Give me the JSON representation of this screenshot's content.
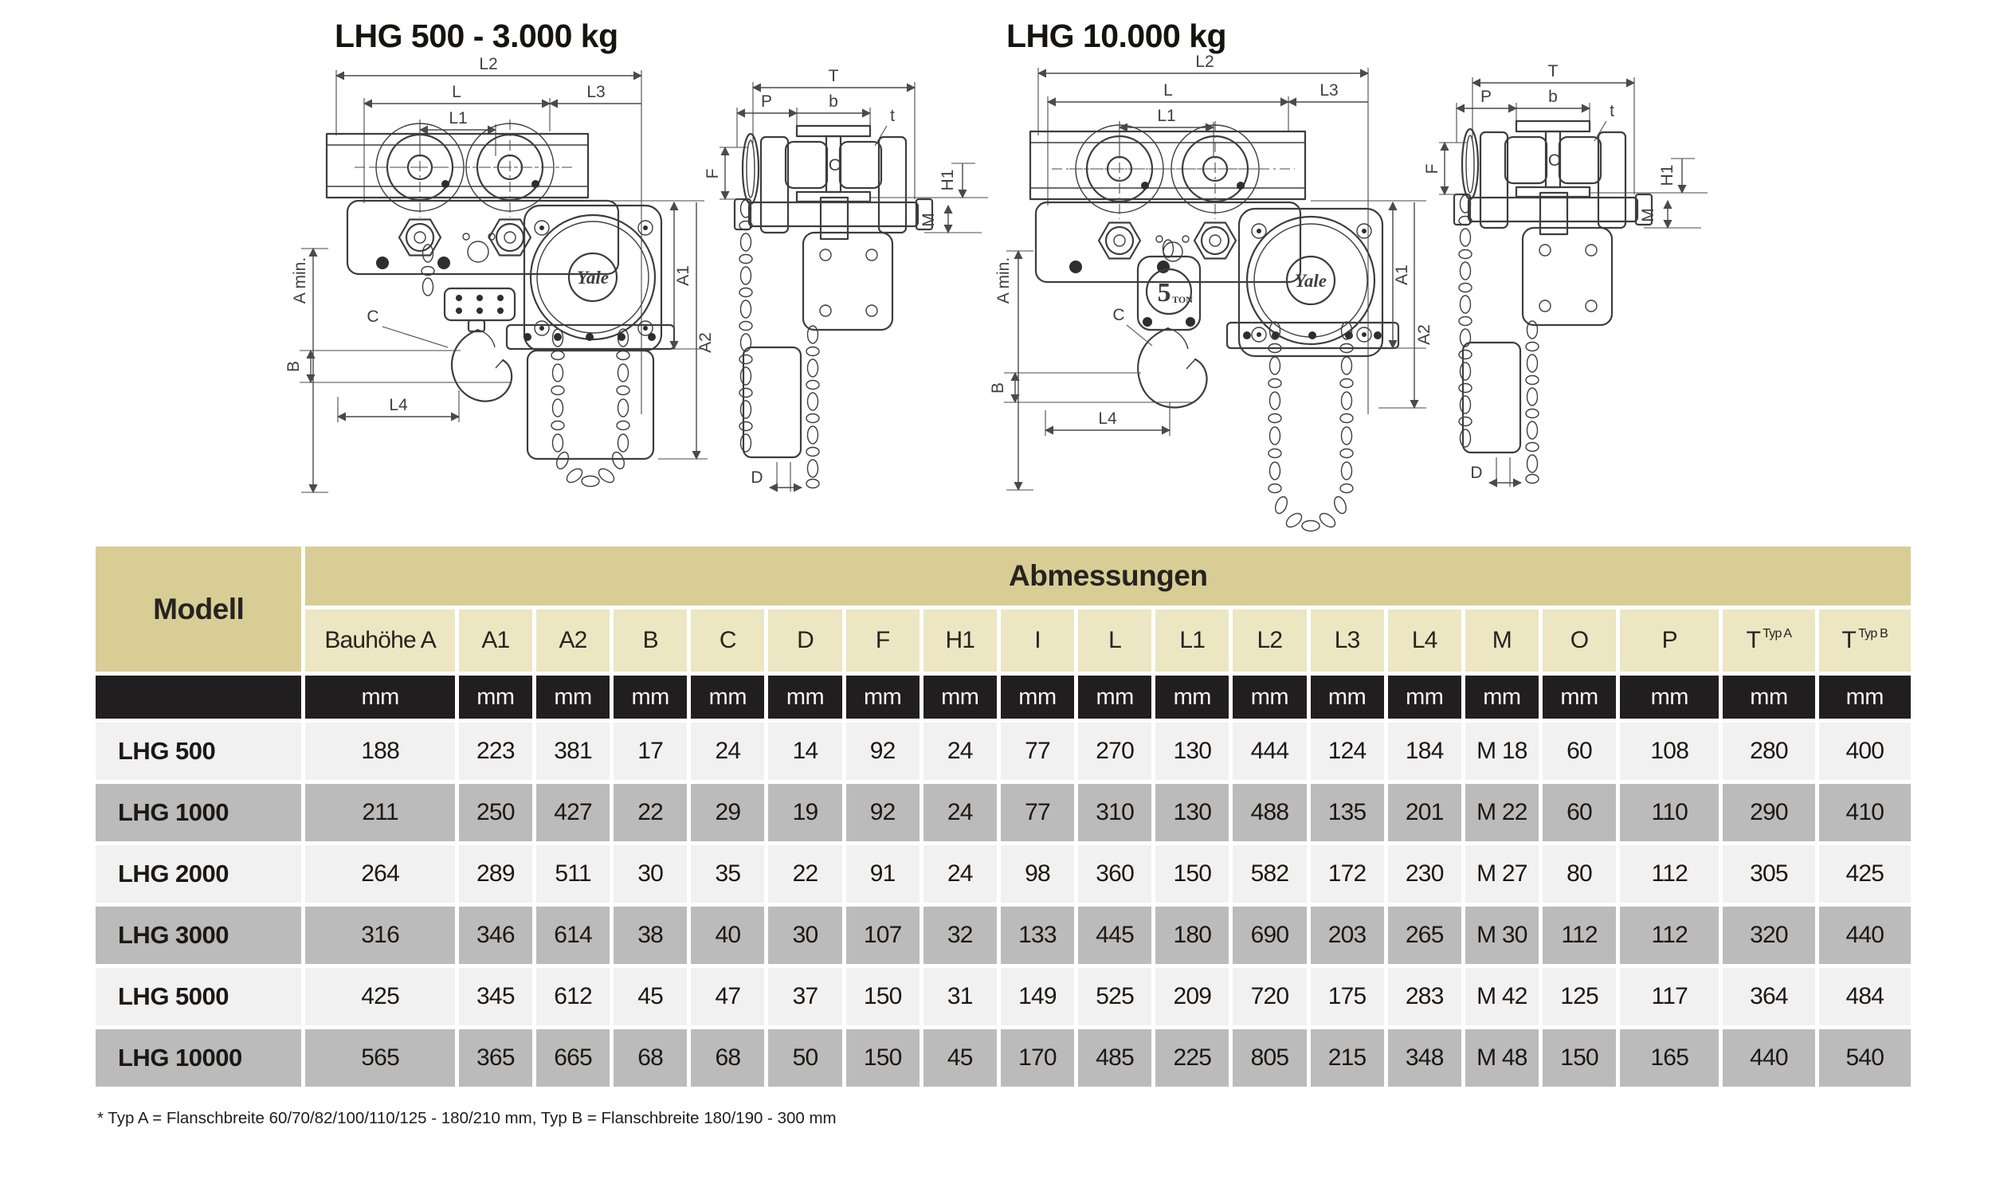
{
  "diagrams": {
    "left": {
      "title": "LHG 500 - 3.000 kg"
    },
    "right": {
      "title": "LHG 10.000 kg"
    },
    "labels": {
      "l2": "L2",
      "l": "L",
      "l1": "L1",
      "l3": "L3",
      "a_min": "A min.",
      "b_upper": "B",
      "l4": "L4",
      "c": "C",
      "a1": "A1",
      "a2": "A2",
      "t_upper": "T",
      "p": "P",
      "b_lower": "b",
      "t_lower": "t",
      "f": "F",
      "o": "O",
      "h1": "H1",
      "m": "M",
      "d": "D"
    },
    "logos": {
      "yale": "Yale",
      "capacity_number": "5",
      "capacity_unit": "TON"
    }
  },
  "table": {
    "model_header": "Modell",
    "group_header": "Abmessungen",
    "unit_label": "mm",
    "columns": [
      {
        "label": "Bauhöhe A"
      },
      {
        "label": "A1"
      },
      {
        "label": "A2"
      },
      {
        "label": "B"
      },
      {
        "label": "C"
      },
      {
        "label": "D"
      },
      {
        "label": "F"
      },
      {
        "label": "H1"
      },
      {
        "label": "I"
      },
      {
        "label": "L"
      },
      {
        "label": "L1"
      },
      {
        "label": "L2"
      },
      {
        "label": "L3"
      },
      {
        "label": "L4"
      },
      {
        "label": "M"
      },
      {
        "label": "O"
      },
      {
        "label": "P"
      },
      {
        "label": "T",
        "sup": "Typ A"
      },
      {
        "label": "T",
        "sup": "Typ B"
      }
    ],
    "rows": [
      {
        "model": "LHG 500",
        "values": [
          "188",
          "223",
          "381",
          "17",
          "24",
          "14",
          "92",
          "24",
          "77",
          "270",
          "130",
          "444",
          "124",
          "184",
          "M 18",
          "60",
          "108",
          "280",
          "400"
        ]
      },
      {
        "model": "LHG 1000",
        "values": [
          "211",
          "250",
          "427",
          "22",
          "29",
          "19",
          "92",
          "24",
          "77",
          "310",
          "130",
          "488",
          "135",
          "201",
          "M 22",
          "60",
          "110",
          "290",
          "410"
        ]
      },
      {
        "model": "LHG 2000",
        "values": [
          "264",
          "289",
          "511",
          "30",
          "35",
          "22",
          "91",
          "24",
          "98",
          "360",
          "150",
          "582",
          "172",
          "230",
          "M 27",
          "80",
          "112",
          "305",
          "425"
        ]
      },
      {
        "model": "LHG 3000",
        "values": [
          "316",
          "346",
          "614",
          "38",
          "40",
          "30",
          "107",
          "32",
          "133",
          "445",
          "180",
          "690",
          "203",
          "265",
          "M 30",
          "112",
          "112",
          "320",
          "440"
        ]
      },
      {
        "model": "LHG 5000",
        "values": [
          "425",
          "345",
          "612",
          "45",
          "47",
          "37",
          "150",
          "31",
          "149",
          "525",
          "209",
          "720",
          "175",
          "283",
          "M 42",
          "125",
          "117",
          "364",
          "484"
        ]
      },
      {
        "model": "LHG 10000",
        "values": [
          "565",
          "365",
          "665",
          "68",
          "68",
          "50",
          "150",
          "45",
          "170",
          "485",
          "225",
          "805",
          "215",
          "348",
          "M 48",
          "150",
          "165",
          "440",
          "540"
        ]
      }
    ],
    "footnote": "* Typ A = Flanschbreite 60/70/82/100/110/125 - 180/210 mm, Typ B = Flanschbreite 180/190 - 300 mm"
  },
  "colors": {
    "header_tan": "#d9cd96",
    "subheader_tan": "#ece6c2",
    "unit_row_black": "#211e1f",
    "row_light": "#f2f1f1",
    "row_dark": "#bcbbbb"
  }
}
